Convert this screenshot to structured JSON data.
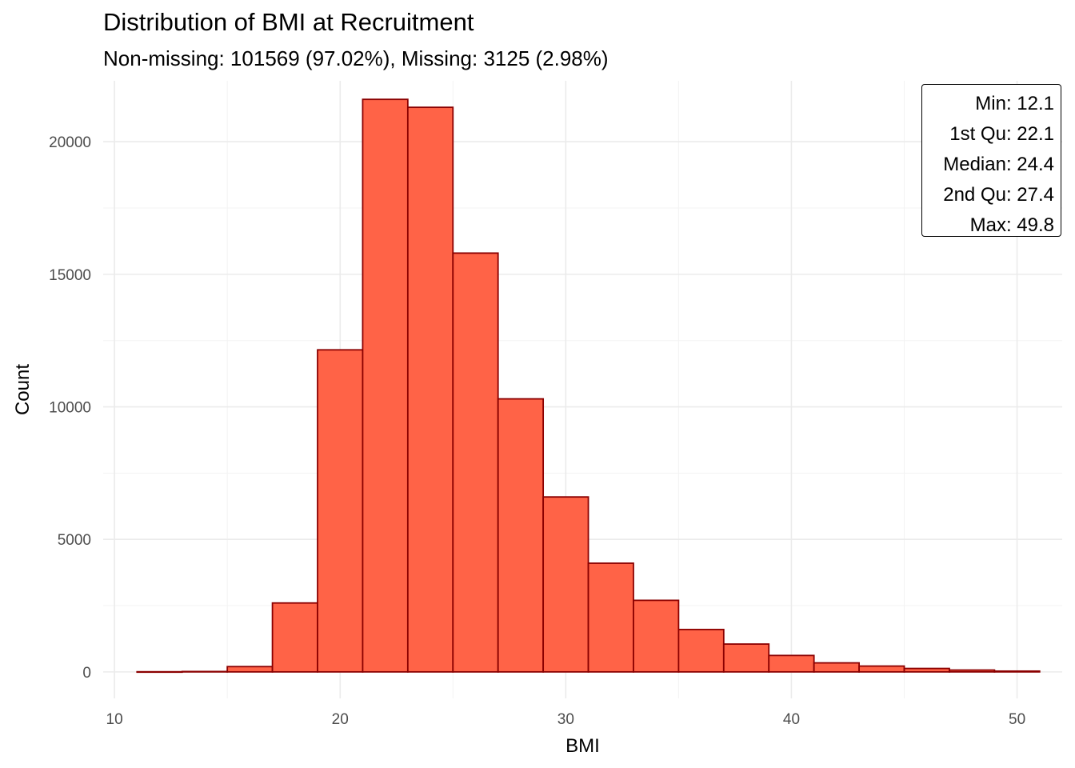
{
  "chart_data": {
    "type": "bar",
    "title": "Distribution of BMI at Recruitment",
    "subtitle": "Non-missing: 101569 (97.02%), Missing: 3125 (2.98%)",
    "xlabel": "BMI",
    "ylabel": "Count",
    "xlim": [
      9.5,
      52
    ],
    "ylim": [
      -1000,
      22300
    ],
    "x_ticks": [
      10,
      20,
      30,
      40,
      50
    ],
    "y_ticks": [
      0,
      5000,
      10000,
      15000,
      20000
    ],
    "x_tick_labels": [
      "10",
      "20",
      "30",
      "40",
      "50"
    ],
    "y_tick_labels": [
      "0",
      "5000",
      "10000",
      "15000",
      "20000"
    ],
    "grid": true,
    "colors": {
      "fill": "#ff6347",
      "outline": "#8b0000"
    },
    "bins": [
      {
        "x0": 11,
        "x1": 13,
        "count": 5
      },
      {
        "x0": 13,
        "x1": 15,
        "count": 15
      },
      {
        "x0": 15,
        "x1": 17,
        "count": 200
      },
      {
        "x0": 17,
        "x1": 19,
        "count": 2600
      },
      {
        "x0": 19,
        "x1": 21,
        "count": 12150
      },
      {
        "x0": 21,
        "x1": 23,
        "count": 21600
      },
      {
        "x0": 23,
        "x1": 25,
        "count": 21300
      },
      {
        "x0": 25,
        "x1": 27,
        "count": 15800
      },
      {
        "x0": 27,
        "x1": 29,
        "count": 10300
      },
      {
        "x0": 29,
        "x1": 31,
        "count": 6600
      },
      {
        "x0": 31,
        "x1": 33,
        "count": 4100
      },
      {
        "x0": 33,
        "x1": 35,
        "count": 2700
      },
      {
        "x0": 35,
        "x1": 37,
        "count": 1600
      },
      {
        "x0": 37,
        "x1": 39,
        "count": 1050
      },
      {
        "x0": 39,
        "x1": 41,
        "count": 620
      },
      {
        "x0": 41,
        "x1": 43,
        "count": 340
      },
      {
        "x0": 43,
        "x1": 45,
        "count": 220
      },
      {
        "x0": 45,
        "x1": 47,
        "count": 130
      },
      {
        "x0": 47,
        "x1": 49,
        "count": 70
      },
      {
        "x0": 49,
        "x1": 51,
        "count": 30
      }
    ],
    "annotation": {
      "position": "top-right",
      "lines": [
        "Min: 12.1",
        "1st Qu: 22.1",
        "Median: 24.4",
        "2nd Qu: 27.4",
        "Max: 49.8"
      ]
    }
  }
}
